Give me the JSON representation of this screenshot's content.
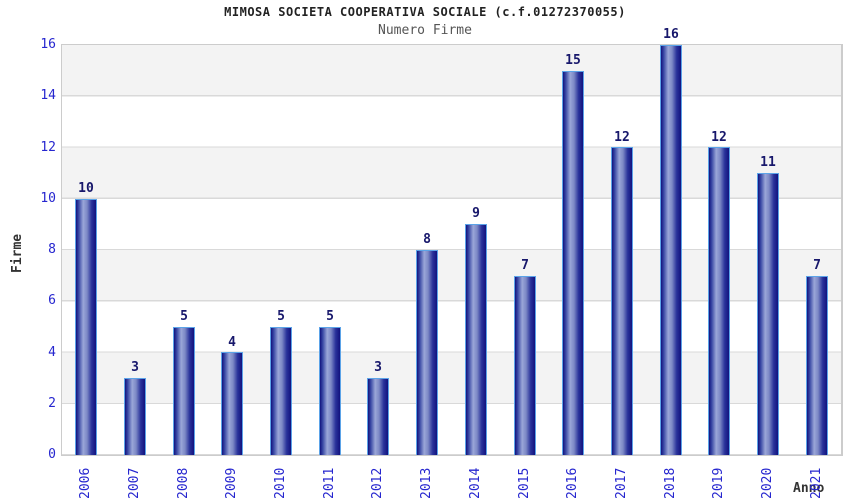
{
  "chart_data": {
    "type": "bar",
    "title": "MIMOSA SOCIETA COOPERATIVA SOCIALE (c.f.01272370055)",
    "subtitle": "Numero Firme",
    "xlabel": "Anno",
    "ylabel": "Firme",
    "categories": [
      "2006",
      "2007",
      "2008",
      "2009",
      "2010",
      "2011",
      "2012",
      "2013",
      "2014",
      "2015",
      "2016",
      "2017",
      "2018",
      "2019",
      "2020",
      "2021"
    ],
    "values": [
      10,
      3,
      5,
      4,
      5,
      5,
      3,
      8,
      9,
      7,
      15,
      12,
      16,
      12,
      11,
      7
    ],
    "ylim": [
      0,
      16
    ],
    "ytick_step": 2,
    "grid": "horizontal-bands",
    "legend": "none"
  },
  "colors": {
    "tick_label": "#2626cf",
    "value_label": "#17176b",
    "bar_dark": "#12127e",
    "bar_mid1": "#3a49a5",
    "bar_light": "#9aa6d8",
    "bar_mid2": "#7d89c6",
    "bar_mid3": "#2a339b",
    "bar_border": "#5ba3e8",
    "band_gray": "#f3f3f3",
    "band_white": "#ffffff",
    "gridline": "#d9d9d9",
    "plot_border": "#cccccc",
    "title_color": "#222222",
    "subtitle_color": "#555555",
    "axis_title_color": "#333333"
  }
}
